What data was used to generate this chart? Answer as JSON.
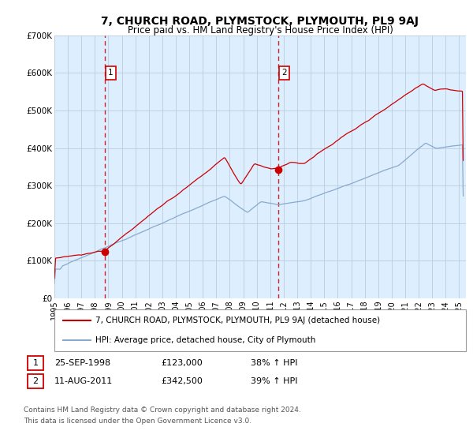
{
  "title": "7, CHURCH ROAD, PLYMSTOCK, PLYMOUTH, PL9 9AJ",
  "subtitle": "Price paid vs. HM Land Registry's House Price Index (HPI)",
  "legend_line1": "7, CHURCH ROAD, PLYMSTOCK, PLYMOUTH, PL9 9AJ (detached house)",
  "legend_line2": "HPI: Average price, detached house, City of Plymouth",
  "footer1": "Contains HM Land Registry data © Crown copyright and database right 2024.",
  "footer2": "This data is licensed under the Open Government Licence v3.0.",
  "sale1_label": "1",
  "sale1_date": "25-SEP-1998",
  "sale1_price": "£123,000",
  "sale1_hpi": "38% ↑ HPI",
  "sale2_label": "2",
  "sale2_date": "11-AUG-2011",
  "sale2_price": "£342,500",
  "sale2_hpi": "39% ↑ HPI",
  "sale1_x": 1998.73,
  "sale1_y": 123000,
  "sale2_x": 2011.61,
  "sale2_y": 342500,
  "vline1_x": 1998.73,
  "vline2_x": 2011.61,
  "red_color": "#cc0000",
  "blue_color": "#88aacc",
  "bg_color": "#ddeeff",
  "plot_bg": "#ffffff",
  "grid_color": "#bbccdd",
  "ylim": [
    0,
    700000
  ],
  "xlim_left": 1995.0,
  "xlim_right": 2025.5,
  "yticks": [
    0,
    100000,
    200000,
    300000,
    400000,
    500000,
    600000,
    700000
  ],
  "ytick_labels": [
    "£0",
    "£100K",
    "£200K",
    "£300K",
    "£400K",
    "£500K",
    "£600K",
    "£700K"
  ],
  "xticks": [
    1995,
    1996,
    1997,
    1998,
    1999,
    2000,
    2001,
    2002,
    2003,
    2004,
    2005,
    2006,
    2007,
    2008,
    2009,
    2010,
    2011,
    2012,
    2013,
    2014,
    2015,
    2016,
    2017,
    2018,
    2019,
    2020,
    2021,
    2022,
    2023,
    2024,
    2025
  ]
}
